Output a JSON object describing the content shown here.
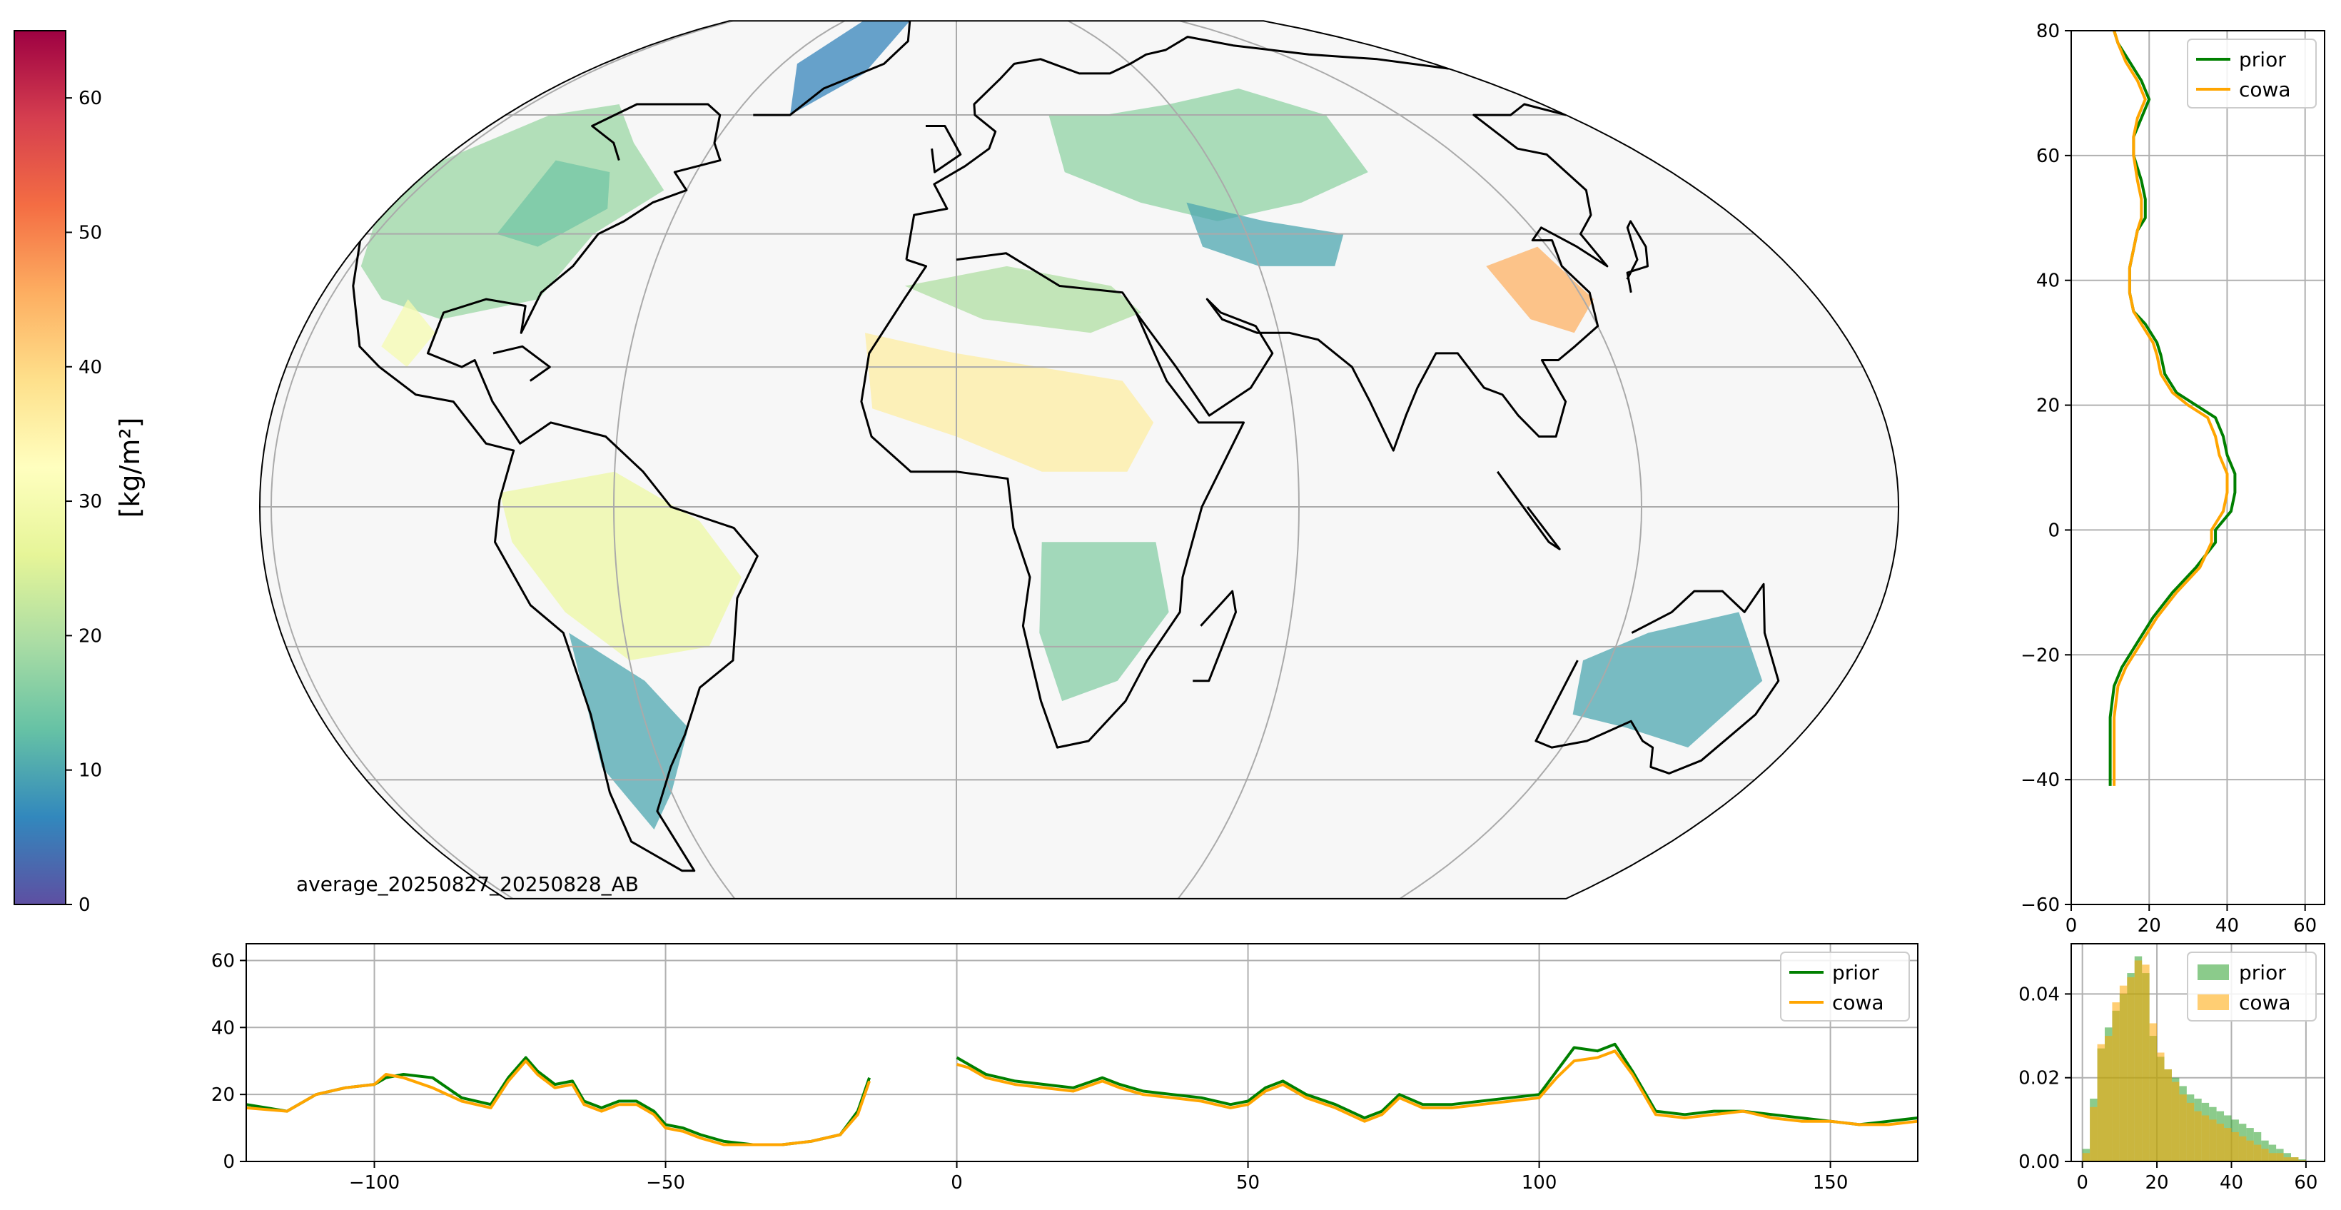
{
  "colorbar": {
    "label": "[kg/m²]",
    "ticks": [
      0,
      10,
      20,
      30,
      40,
      50,
      60
    ],
    "range": [
      0,
      65
    ],
    "colormap": "Spectral_r",
    "stops": [
      "#5e4fa2",
      "#3288bd",
      "#66c2a5",
      "#abdda4",
      "#e6f598",
      "#ffffbf",
      "#fee08b",
      "#fdae61",
      "#f46d43",
      "#d53e4f",
      "#9e0142"
    ]
  },
  "map": {
    "label": "average_20250827_20250828_AB",
    "projection": "Mollweide",
    "lon_range": [
      -122,
      165
    ],
    "lat_range": [
      -60,
      80
    ],
    "ocean_color": "#f7f7f7",
    "coast_color": "#000000"
  },
  "chart_data": [
    {
      "id": "lon-profile",
      "type": "line",
      "title": "",
      "xlabel": "",
      "ylabel": "",
      "xlim": [
        -122,
        165
      ],
      "ylim": [
        0,
        65
      ],
      "xticks": [
        -100,
        -50,
        0,
        50,
        100,
        150
      ],
      "yticks": [
        0,
        20,
        40,
        60
      ],
      "grid": true,
      "legend": "top-right",
      "series": [
        {
          "name": "prior",
          "color": "#008000",
          "x": [
            -122,
            -115,
            -110,
            -105,
            -100,
            -98,
            -95,
            -90,
            -85,
            -80,
            -77,
            -74,
            -72,
            -69,
            -66,
            -64,
            -61,
            -58,
            -55,
            -52,
            -50,
            -47,
            -44,
            -40,
            -35,
            -30,
            -25,
            -20,
            -17,
            -15,
            0,
            2,
            5,
            10,
            15,
            20,
            25,
            28,
            32,
            37,
            42,
            47,
            50,
            53,
            56,
            60,
            65,
            70,
            73,
            76,
            80,
            85,
            90,
            95,
            100,
            103,
            106,
            110,
            113,
            116,
            120,
            125,
            130,
            135,
            140,
            145,
            150,
            155,
            160,
            165
          ],
          "y": [
            17,
            15,
            20,
            22,
            23,
            25,
            26,
            25,
            19,
            17,
            25,
            31,
            27,
            23,
            24,
            18,
            16,
            18,
            18,
            15,
            11,
            10,
            8,
            6,
            5,
            5,
            6,
            8,
            15,
            25,
            31,
            29,
            26,
            24,
            23,
            22,
            25,
            23,
            21,
            20,
            19,
            17,
            18,
            22,
            24,
            20,
            17,
            13,
            15,
            20,
            17,
            17,
            18,
            19,
            20,
            27,
            34,
            33,
            35,
            27,
            15,
            14,
            15,
            15,
            14,
            13,
            12,
            11,
            12,
            13
          ]
        },
        {
          "name": "cowa",
          "color": "#ffa500",
          "x": [
            -122,
            -115,
            -110,
            -105,
            -100,
            -98,
            -95,
            -90,
            -85,
            -80,
            -77,
            -74,
            -72,
            -69,
            -66,
            -64,
            -61,
            -58,
            -55,
            -52,
            -50,
            -47,
            -44,
            -40,
            -35,
            -30,
            -25,
            -20,
            -17,
            -15,
            0,
            2,
            5,
            10,
            15,
            20,
            25,
            28,
            32,
            37,
            42,
            47,
            50,
            53,
            56,
            60,
            65,
            70,
            73,
            76,
            80,
            85,
            90,
            95,
            100,
            103,
            106,
            110,
            113,
            116,
            120,
            125,
            130,
            135,
            140,
            145,
            150,
            155,
            160,
            165
          ],
          "y": [
            16,
            15,
            20,
            22,
            23,
            26,
            25,
            22,
            18,
            16,
            24,
            30,
            26,
            22,
            23,
            17,
            15,
            17,
            17,
            14,
            10,
            9,
            7,
            5,
            5,
            5,
            6,
            8,
            14,
            24,
            29,
            28,
            25,
            23,
            22,
            21,
            24,
            22,
            20,
            19,
            18,
            16,
            17,
            21,
            23,
            19,
            16,
            12,
            14,
            19,
            16,
            16,
            17,
            18,
            19,
            25,
            30,
            31,
            33,
            26,
            14,
            13,
            14,
            15,
            13,
            12,
            12,
            11,
            11,
            12
          ]
        }
      ]
    },
    {
      "id": "lat-profile",
      "type": "line",
      "title": "",
      "xlabel": "",
      "ylabel": "",
      "xlim": [
        0,
        65
      ],
      "ylim": [
        -60,
        80
      ],
      "xticks": [
        0,
        20,
        40,
        60
      ],
      "yticks": [
        -60,
        -40,
        -20,
        0,
        20,
        40,
        60,
        80
      ],
      "grid": true,
      "legend": "top-right",
      "series": [
        {
          "name": "prior",
          "color": "#008000",
          "lat": [
            -41,
            -36,
            -30,
            -25,
            -22,
            -18,
            -14,
            -10,
            -6,
            -2,
            0,
            3,
            6,
            9,
            12,
            15,
            18,
            20,
            22,
            25,
            28,
            30,
            33,
            35,
            38,
            42,
            45,
            48,
            50,
            53,
            56,
            60,
            63,
            66,
            69,
            72,
            75,
            78,
            80
          ],
          "val": [
            10,
            10,
            10,
            11,
            13,
            17,
            21,
            26,
            32,
            37,
            37,
            41,
            42,
            42,
            40,
            39,
            37,
            32,
            27,
            24,
            23,
            22,
            19,
            16,
            15,
            15,
            16,
            17,
            19,
            19,
            18,
            16,
            16,
            18,
            20,
            18,
            15,
            12,
            11
          ]
        },
        {
          "name": "cowa",
          "color": "#ffa500",
          "lat": [
            -41,
            -36,
            -30,
            -25,
            -22,
            -18,
            -14,
            -10,
            -6,
            -2,
            0,
            3,
            6,
            9,
            12,
            15,
            18,
            20,
            22,
            25,
            28,
            30,
            33,
            35,
            38,
            42,
            45,
            48,
            50,
            53,
            56,
            60,
            63,
            66,
            69,
            72,
            75,
            78,
            80
          ],
          "val": [
            11,
            11,
            11,
            12,
            14,
            18,
            22,
            27,
            33,
            36,
            36,
            39,
            40,
            40,
            38,
            37,
            35,
            30,
            26,
            23,
            22,
            21,
            18,
            16,
            15,
            15,
            16,
            17,
            18,
            18,
            17,
            16,
            16,
            17,
            19,
            17,
            14,
            12,
            11
          ]
        }
      ]
    },
    {
      "id": "histogram",
      "type": "bar",
      "title": "",
      "xlabel": "",
      "ylabel": "",
      "xlim": [
        -3,
        65
      ],
      "ylim": [
        0,
        0.052
      ],
      "xticks": [
        0,
        20,
        40,
        60
      ],
      "yticks": [
        0.0,
        0.02,
        0.04
      ],
      "ytick_labels": [
        "0.00",
        "0.02",
        "0.04"
      ],
      "grid": true,
      "legend": "top-right",
      "bin_edges": [
        0,
        2,
        4,
        6,
        8,
        10,
        12,
        14,
        16,
        18,
        20,
        22,
        24,
        26,
        28,
        30,
        32,
        34,
        36,
        38,
        40,
        42,
        44,
        46,
        48,
        50,
        52,
        54,
        56,
        58,
        60
      ],
      "series": [
        {
          "name": "prior",
          "color": "#2ca02c",
          "values": [
            0.003,
            0.015,
            0.027,
            0.032,
            0.036,
            0.04,
            0.045,
            0.049,
            0.045,
            0.03,
            0.025,
            0.022,
            0.02,
            0.018,
            0.016,
            0.015,
            0.014,
            0.013,
            0.012,
            0.011,
            0.01,
            0.009,
            0.008,
            0.007,
            0.005,
            0.004,
            0.003,
            0.002,
            0.001,
            0.0005
          ]
        },
        {
          "name": "cowa",
          "color": "#ffa500",
          "values": [
            0.002,
            0.013,
            0.028,
            0.03,
            0.038,
            0.042,
            0.044,
            0.048,
            0.047,
            0.033,
            0.026,
            0.022,
            0.019,
            0.016,
            0.014,
            0.012,
            0.011,
            0.01,
            0.009,
            0.008,
            0.007,
            0.006,
            0.005,
            0.004,
            0.003,
            0.002,
            0.002,
            0.001,
            0.001,
            0.0003
          ]
        }
      ]
    }
  ]
}
